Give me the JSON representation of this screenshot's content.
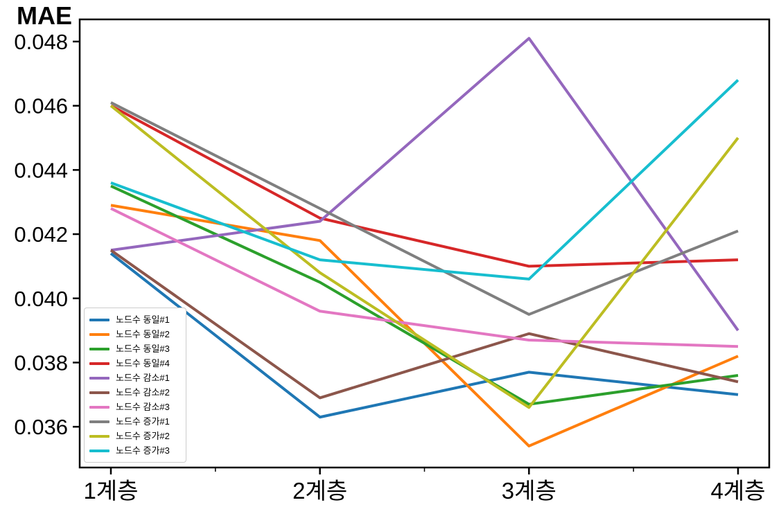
{
  "chart_data": {
    "type": "line",
    "title": "MAE",
    "xlabel": "",
    "ylabel": "MAE",
    "categories": [
      "1계층",
      "2계층",
      "3계층",
      "4계층"
    ],
    "series": [
      {
        "name": "노드수 동일#1",
        "color": "#1f77b4",
        "values": [
          0.0414,
          0.0363,
          0.0377,
          0.037
        ]
      },
      {
        "name": "노드수 동일#2",
        "color": "#ff7f0e",
        "values": [
          0.0429,
          0.0418,
          0.0354,
          0.0382
        ]
      },
      {
        "name": "노드수 동일#3",
        "color": "#2ca02c",
        "values": [
          0.0435,
          0.0405,
          0.0367,
          0.0376
        ]
      },
      {
        "name": "노드수 동일#4",
        "color": "#d62728",
        "values": [
          0.046,
          0.0425,
          0.041,
          0.0412
        ]
      },
      {
        "name": "노드수 감소#1",
        "color": "#9467bd",
        "values": [
          0.0415,
          0.0424,
          0.0481,
          0.039
        ]
      },
      {
        "name": "노드수 감소#2",
        "color": "#8c564b",
        "values": [
          0.0415,
          0.0369,
          0.0389,
          0.0374
        ]
      },
      {
        "name": "노드수 감소#3",
        "color": "#e377c2",
        "values": [
          0.0428,
          0.0396,
          0.0387,
          0.0385
        ]
      },
      {
        "name": "노드수 증가#1",
        "color": "#7f7f7f",
        "values": [
          0.0461,
          0.0428,
          0.0395,
          0.0421
        ]
      },
      {
        "name": "노드수 증가#2",
        "color": "#bcbd22",
        "values": [
          0.046,
          0.0408,
          0.0366,
          0.045
        ]
      },
      {
        "name": "노드수 증가#3",
        "color": "#17becf",
        "values": [
          0.0436,
          0.0412,
          0.0406,
          0.0468
        ]
      }
    ],
    "yticks": [
      "0.036",
      "0.038",
      "0.040",
      "0.042",
      "0.044",
      "0.046",
      "0.048"
    ],
    "ylim": [
      0.03473,
      0.04869
    ],
    "grid": false,
    "legend_position": "lower-left",
    "frame_color": "#000000",
    "text_color": "#000000"
  }
}
